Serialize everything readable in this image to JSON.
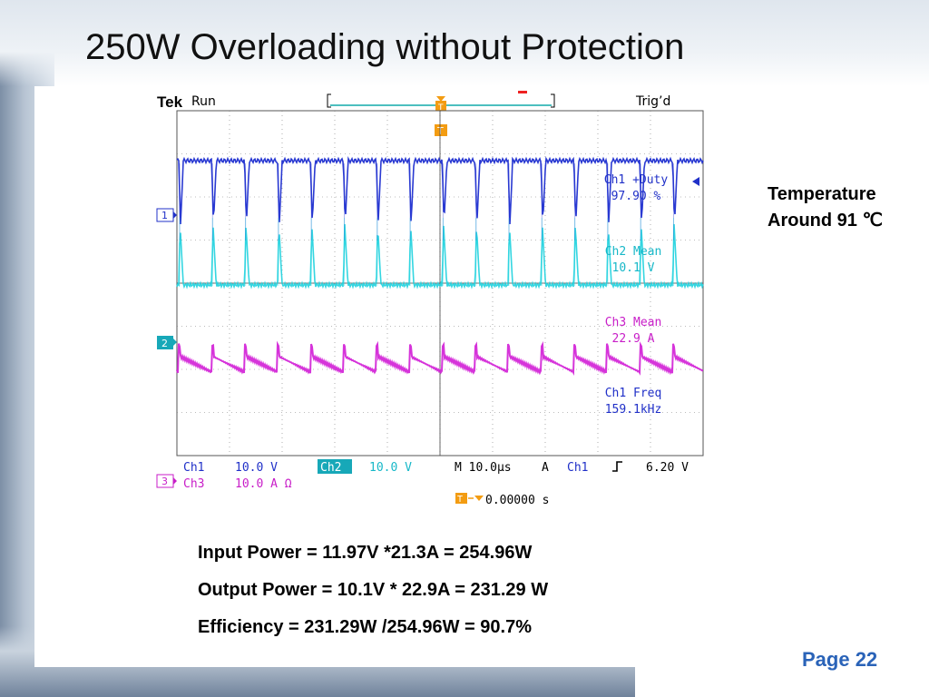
{
  "slide": {
    "title": "250W Overloading without Protection",
    "page_label": "Page 22"
  },
  "scope": {
    "brand": "Tek",
    "run_status": "Run",
    "trigger_status": "Trig’d",
    "trigger_marker": "T",
    "channel_markers": [
      "1",
      "2",
      "3"
    ],
    "measurements": [
      {
        "label": "Ch1 +Duty",
        "value": "97.90 %",
        "color": "#2030c8"
      },
      {
        "label": "Ch2 Mean",
        "value": "10.1 V",
        "color": "#17b8c8"
      },
      {
        "label": "Ch3 Mean",
        "value": "22.9 A",
        "color": "#c81ec8"
      },
      {
        "label": "Ch1 Freq",
        "value": "159.1kHz",
        "color": "#2030c8"
      }
    ],
    "bottom_row1": {
      "ch1_label": "Ch1",
      "ch1_scale": "10.0 V",
      "ch2_label": "Ch2",
      "ch2_scale": "10.0 V",
      "timebase": "M 10.0µs",
      "trigger_mode": "A",
      "trigger_source": "Ch1",
      "trigger_level": "6.20 V"
    },
    "bottom_row2": {
      "ch3_label": "Ch3",
      "ch3_scale": "10.0 A Ω",
      "position": "0.00000 s"
    },
    "colors": {
      "ch1": "#1f2fd0",
      "ch2": "#1ed2de",
      "ch3": "#d21ed6",
      "grid": "#7a7a7a"
    }
  },
  "side_note": {
    "line1": "Temperature",
    "line2": "Around 91 ℃"
  },
  "equations": [
    "Input Power = 11.97V *21.3A = 254.96W",
    "Output Power = 10.1V * 22.9A = 231.29 W",
    "Efficiency = 231.29W /254.96W = 90.7%"
  ]
}
